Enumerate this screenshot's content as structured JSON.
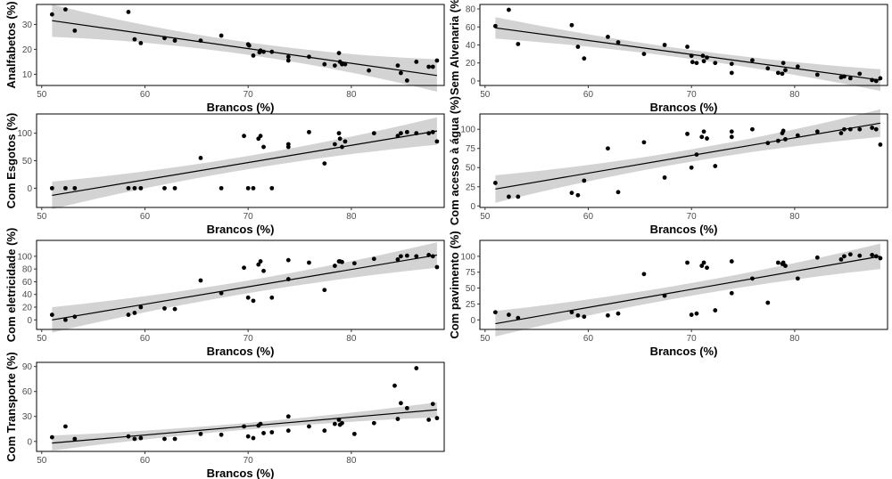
{
  "chart_data": [
    {
      "type": "scatter",
      "xlabel": "Brancos (%)",
      "ylabel": "Analfabetos (%)",
      "xlim": [
        49.5,
        89
      ],
      "ylim": [
        5.5,
        38
      ],
      "xticks": [
        50,
        60,
        70,
        80,
        90
      ],
      "yticks": [
        10,
        20,
        30
      ],
      "fit": {
        "x0": 51,
        "y0": 31.5,
        "x1": 88.3,
        "y1": 9.5
      },
      "x": [
        51,
        52.3,
        53.2,
        58.4,
        59,
        59.6,
        61.9,
        62.9,
        65.4,
        67.4,
        70,
        70.1,
        70.5,
        71.1,
        71.2,
        71.5,
        72.3,
        73.9,
        73.9,
        75.9,
        77.4,
        78.4,
        78.8,
        78.9,
        79.1,
        79.4,
        81.7,
        84.5,
        84.8,
        85.4,
        86.3,
        87.5,
        87.9,
        88.3
      ],
      "y": [
        34,
        36,
        27.5,
        35,
        24,
        22.5,
        24.5,
        23.5,
        23.5,
        25.5,
        22,
        21.5,
        17.5,
        18.8,
        19.5,
        19,
        19,
        17,
        15.5,
        17,
        14,
        13.5,
        18.5,
        15,
        14,
        14,
        11.5,
        13.5,
        10.5,
        7.5,
        15,
        13,
        13,
        15.5
      ],
      "band": [
        6.5,
        2.5
      ]
    },
    {
      "type": "scatter",
      "xlabel": "Brancos (%)",
      "ylabel": "Sem Alvenaria (%)",
      "xlim": [
        49.5,
        89
      ],
      "ylim": [
        -5,
        85
      ],
      "xticks": [
        50,
        60,
        70,
        80,
        90
      ],
      "yticks": [
        0,
        20,
        40,
        60,
        80
      ],
      "fit": {
        "x0": 51,
        "y0": 59,
        "x1": 88.3,
        "y1": 1
      },
      "x": [
        51,
        52.3,
        53.2,
        58.4,
        59,
        59.6,
        61.9,
        62.9,
        65.4,
        67.4,
        69.6,
        70,
        70.1,
        70.5,
        71.1,
        71.2,
        71.5,
        72.3,
        73.9,
        73.9,
        75.9,
        77.4,
        78.4,
        78.8,
        78.9,
        79.1,
        80.3,
        82.2,
        84.5,
        84.8,
        85.4,
        86.3,
        87.5,
        87.9,
        88.3
      ],
      "y": [
        61,
        79,
        41,
        62,
        38,
        25,
        49,
        43,
        30,
        40,
        38,
        28,
        21,
        20,
        28,
        22,
        26,
        20,
        9,
        19,
        23,
        14,
        9,
        8,
        20,
        12,
        16,
        7,
        4,
        5,
        3,
        8,
        1,
        0,
        3
      ],
      "band": [
        12,
        5
      ]
    },
    {
      "type": "scatter",
      "xlabel": "Brancos (%)",
      "ylabel": "Com Esgotos (%)",
      "xlim": [
        49.5,
        89
      ],
      "ylim": [
        -35,
        135
      ],
      "xticks": [
        50,
        60,
        70,
        80,
        90
      ],
      "yticks": [
        0,
        50,
        100
      ],
      "fit": {
        "x0": 51,
        "y0": -13,
        "x1": 88.3,
        "y1": 104
      },
      "x": [
        51,
        52.3,
        53.2,
        58.4,
        59,
        59.6,
        61.9,
        62.9,
        65.4,
        67.4,
        69.6,
        70,
        70.5,
        71,
        71.2,
        71.5,
        72.3,
        73.9,
        73.9,
        75.9,
        77.4,
        78.4,
        78.8,
        78.9,
        79.1,
        79.4,
        82.2,
        84.5,
        84.8,
        85.4,
        86.3,
        87.5,
        87.9,
        88.3
      ],
      "y": [
        0,
        0,
        0,
        0,
        0,
        0,
        0,
        0,
        55,
        0,
        95,
        0,
        0,
        90,
        95,
        75,
        0,
        80,
        75,
        102,
        45,
        80,
        100,
        90,
        75,
        85,
        100,
        95,
        100,
        102,
        100,
        100,
        102,
        85
      ],
      "band": [
        25,
        12
      ]
    },
    {
      "type": "scatter",
      "xlabel": "Brancos (%)",
      "ylabel": "Com acesso à água (%)",
      "xlim": [
        49.5,
        89
      ],
      "ylim": [
        -2,
        120
      ],
      "xticks": [
        50,
        60,
        70,
        80,
        90
      ],
      "yticks": [
        0,
        25,
        50,
        75,
        100
      ],
      "fit": {
        "x0": 51,
        "y0": 22,
        "x1": 88.3,
        "y1": 108
      },
      "x": [
        51,
        52.3,
        53.2,
        58.4,
        59,
        59.6,
        61.9,
        62.9,
        65.4,
        67.4,
        69.6,
        70,
        70.5,
        71,
        71.2,
        71.5,
        72.3,
        73.9,
        73.9,
        75.9,
        77.4,
        78.4,
        78.8,
        78.9,
        79.1,
        80.3,
        82.2,
        84.5,
        84.8,
        85.4,
        86.3,
        87.5,
        87.9,
        88.3
      ],
      "y": [
        30,
        12,
        12,
        17,
        14,
        33,
        75,
        18,
        83,
        37,
        94,
        50,
        67,
        90,
        97,
        88,
        52,
        97,
        90,
        100,
        82,
        85,
        95,
        98,
        87,
        92,
        97,
        95,
        100,
        100,
        100,
        102,
        100,
        80
      ],
      "band": [
        18,
        8
      ]
    },
    {
      "type": "scatter",
      "xlabel": "Brancos (%)",
      "ylabel": "Com eletricidade (%)",
      "xlim": [
        49.5,
        89
      ],
      "ylim": [
        -15,
        125
      ],
      "xticks": [
        50,
        60,
        70,
        80,
        90
      ],
      "yticks": [
        0,
        20,
        40,
        60,
        80,
        100
      ],
      "fit": {
        "x0": 51,
        "y0": 0,
        "x1": 88.3,
        "y1": 102
      },
      "x": [
        51,
        52.3,
        53.2,
        58.4,
        59,
        59.6,
        61.9,
        62.9,
        65.4,
        67.4,
        69.6,
        70,
        70.5,
        71,
        71.2,
        71.5,
        72.3,
        73.9,
        73.9,
        75.9,
        77.4,
        78.4,
        78.8,
        78.9,
        79.1,
        80.3,
        82.2,
        84.5,
        84.8,
        85.4,
        86.3,
        87.5,
        87.9,
        88.3
      ],
      "y": [
        8,
        0,
        5,
        8,
        11,
        20,
        18,
        17,
        62,
        42,
        82,
        35,
        30,
        87,
        92,
        77,
        35,
        94,
        64,
        90,
        47,
        85,
        92,
        92,
        91,
        89,
        96,
        95,
        100,
        101,
        100,
        102,
        100,
        83
      ],
      "band": [
        20,
        10
      ]
    },
    {
      "type": "scatter",
      "xlabel": "Brancos (%)",
      "ylabel": "Com pavimento (%)",
      "xlim": [
        49.5,
        89
      ],
      "ylim": [
        -15,
        125
      ],
      "xticks": [
        50,
        60,
        70,
        80,
        90
      ],
      "yticks": [
        0,
        25,
        50,
        75,
        100
      ],
      "fit": {
        "x0": 51,
        "y0": -6,
        "x1": 88.3,
        "y1": 100
      },
      "x": [
        51,
        52.3,
        53.2,
        58.4,
        59,
        59.6,
        61.9,
        62.9,
        65.4,
        67.4,
        69.6,
        70,
        70.5,
        71,
        71.2,
        71.5,
        72.3,
        73.9,
        73.9,
        75.9,
        77.4,
        78.4,
        78.8,
        78.9,
        79.1,
        80.3,
        82.2,
        84.5,
        84.8,
        85.4,
        86.3,
        87.5,
        87.9,
        88.3
      ],
      "y": [
        12,
        8,
        3,
        12,
        7,
        5,
        7,
        10,
        72,
        38,
        90,
        8,
        10,
        85,
        90,
        82,
        15,
        92,
        42,
        65,
        27,
        90,
        88,
        90,
        85,
        65,
        98,
        95,
        100,
        103,
        101,
        102,
        100,
        97
      ],
      "band": [
        20,
        10
      ]
    },
    {
      "type": "scatter",
      "xlabel": "Brancos (%)",
      "ylabel": "Com Transporte (%)",
      "xlim": [
        49.5,
        89
      ],
      "ylim": [
        -12,
        95
      ],
      "xticks": [
        50,
        60,
        70,
        80,
        90
      ],
      "yticks": [
        0,
        30,
        60,
        90
      ],
      "fit": {
        "x0": 51,
        "y0": -2,
        "x1": 88.3,
        "y1": 38
      },
      "x": [
        51,
        52.3,
        53.2,
        58.4,
        59,
        59.6,
        61.9,
        62.9,
        65.4,
        67.4,
        69.6,
        70,
        70.5,
        71,
        71.2,
        71.5,
        72.3,
        73.9,
        73.9,
        75.9,
        77.4,
        78.4,
        78.8,
        78.9,
        79.1,
        80.3,
        82.2,
        84.2,
        84.5,
        84.8,
        85.4,
        86.3,
        87.5,
        87.9,
        88.3
      ],
      "y": [
        5,
        18,
        3,
        6,
        3,
        4,
        3,
        3,
        9,
        8,
        18,
        6,
        4,
        19,
        21,
        10,
        11,
        30,
        13,
        18,
        13,
        21,
        26,
        20,
        22,
        9,
        22,
        67,
        27,
        46,
        40,
        88,
        26,
        45,
        28
      ],
      "band": [
        9,
        4
      ]
    }
  ]
}
